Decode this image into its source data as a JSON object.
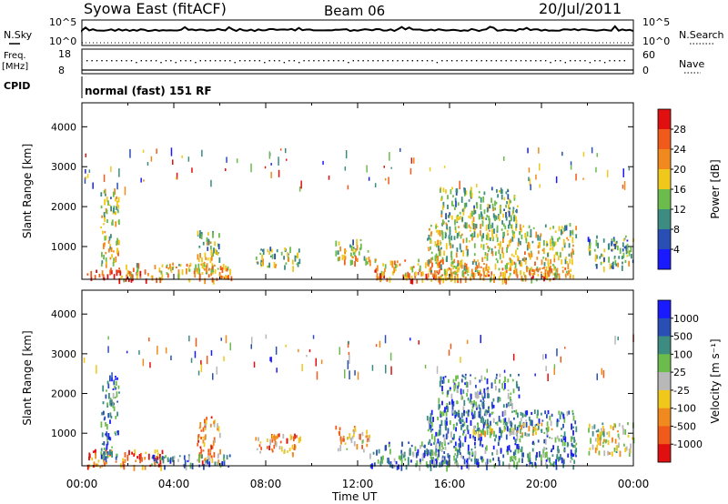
{
  "header": {
    "station": "Syowa East (fitACF)",
    "beam": "Beam 06",
    "date": "20/Jul/2011"
  },
  "panels": {
    "nsky": {
      "left_label": "N.Sky",
      "right_label": "N.Search",
      "left_ticks": [
        "10^5",
        "10^0"
      ],
      "right_ticks": [
        "10^5",
        "10^0"
      ]
    },
    "freq": {
      "left_label_1": "Freq.",
      "left_label_2": "[MHz]",
      "right_label": "Nave",
      "left_ticks": [
        "18",
        "8"
      ],
      "right_ticks": [
        "60",
        "0"
      ]
    },
    "cpid": {
      "label": "CPID",
      "text": "normal (fast) 151 RF"
    }
  },
  "colors": {
    "power_scale": [
      "#1a1aff",
      "#2a4fb4",
      "#3c8c82",
      "#6cbc4c",
      "#f0c81c",
      "#f08a1e",
      "#f05a1a",
      "#e01010"
    ],
    "velocity_scale": [
      "#e01010",
      "#f05a1a",
      "#f08a1e",
      "#f0c81c",
      "#b8b8b8",
      "#6cbc4c",
      "#3c8c82",
      "#2a4fb4",
      "#1a1aff"
    ]
  },
  "chart_data": [
    {
      "type": "heatmap",
      "name": "power",
      "ylabel": "Slant Range [km]",
      "xlabel": "Time UT",
      "x_ticks": [
        "00:00",
        "04:00",
        "08:00",
        "12:00",
        "16:00",
        "20:00",
        "00:00"
      ],
      "x_range_hours": [
        0,
        24
      ],
      "y_range_km": [
        180,
        4600
      ],
      "y_ticks": [
        1000,
        2000,
        3000,
        4000
      ],
      "colorbar": {
        "label": "Power [dB]",
        "range": [
          0,
          32
        ],
        "ticks": [
          "4",
          "8",
          "12",
          "16",
          "20",
          "24",
          "28"
        ]
      },
      "echo_regions": [
        {
          "t": [
            0.2,
            2.6
          ],
          "r": [
            180,
            420
          ],
          "level": 0.85
        },
        {
          "t": [
            0.8,
            1.6
          ],
          "r": [
            400,
            2500
          ],
          "level": 0.45
        },
        {
          "t": [
            5.0,
            6.0
          ],
          "r": [
            300,
            1450
          ],
          "level": 0.4
        },
        {
          "t": [
            1.5,
            6.5
          ],
          "r": [
            180,
            600
          ],
          "level": 0.55
        },
        {
          "t": [
            7.5,
            9.5
          ],
          "r": [
            500,
            1000
          ],
          "level": 0.35
        },
        {
          "t": [
            11.0,
            12.5
          ],
          "r": [
            600,
            1200
          ],
          "level": 0.45
        },
        {
          "t": [
            12.5,
            16.5
          ],
          "r": [
            180,
            700
          ],
          "level": 0.6
        },
        {
          "t": [
            15.0,
            21.5
          ],
          "r": [
            200,
            1600
          ],
          "level": 0.45
        },
        {
          "t": [
            17.0,
            20.5
          ],
          "r": [
            200,
            500
          ],
          "level": 0.65
        },
        {
          "t": [
            15.5,
            19.0
          ],
          "r": [
            1500,
            2500
          ],
          "level": 0.35
        },
        {
          "t": [
            22.0,
            24.0
          ],
          "r": [
            500,
            1300
          ],
          "level": 0.3
        }
      ]
    },
    {
      "type": "heatmap",
      "name": "velocity",
      "ylabel": "Slant Range [km]",
      "xlabel": "Time UT",
      "x_ticks": [
        "00:00",
        "04:00",
        "08:00",
        "12:00",
        "16:00",
        "20:00",
        "00:00"
      ],
      "x_range_hours": [
        0,
        24
      ],
      "y_range_km": [
        180,
        4600
      ],
      "y_ticks": [
        1000,
        2000,
        3000,
        4000
      ],
      "colorbar": {
        "label": "Velocity [m s⁻¹]",
        "ticks": [
          "1000",
          "500",
          "100",
          "25",
          "-25",
          "-100",
          "-500",
          "-1000"
        ]
      },
      "echo_regions": [
        {
          "t": [
            0.2,
            3.5
          ],
          "r": [
            180,
            600
          ],
          "level": 0.2
        },
        {
          "t": [
            0.8,
            1.6
          ],
          "r": [
            400,
            2500
          ],
          "level": 0.75
        },
        {
          "t": [
            5.0,
            6.0
          ],
          "r": [
            300,
            1450
          ],
          "level": 0.3
        },
        {
          "t": [
            3.0,
            6.5
          ],
          "r": [
            180,
            500
          ],
          "level": 0.7
        },
        {
          "t": [
            7.5,
            9.5
          ],
          "r": [
            500,
            1000
          ],
          "level": 0.3
        },
        {
          "t": [
            11.0,
            12.5
          ],
          "r": [
            600,
            1200
          ],
          "level": 0.35
        },
        {
          "t": [
            12.5,
            16.5
          ],
          "r": [
            180,
            800
          ],
          "level": 0.7
        },
        {
          "t": [
            15.0,
            21.5
          ],
          "r": [
            200,
            1600
          ],
          "level": 0.75
        },
        {
          "t": [
            17.0,
            20.5
          ],
          "r": [
            1000,
            1300
          ],
          "level": 0.5
        },
        {
          "t": [
            15.5,
            19.0
          ],
          "r": [
            1500,
            2500
          ],
          "level": 0.7
        },
        {
          "t": [
            22.0,
            24.0
          ],
          "r": [
            500,
            1300
          ],
          "level": 0.5
        }
      ]
    }
  ]
}
